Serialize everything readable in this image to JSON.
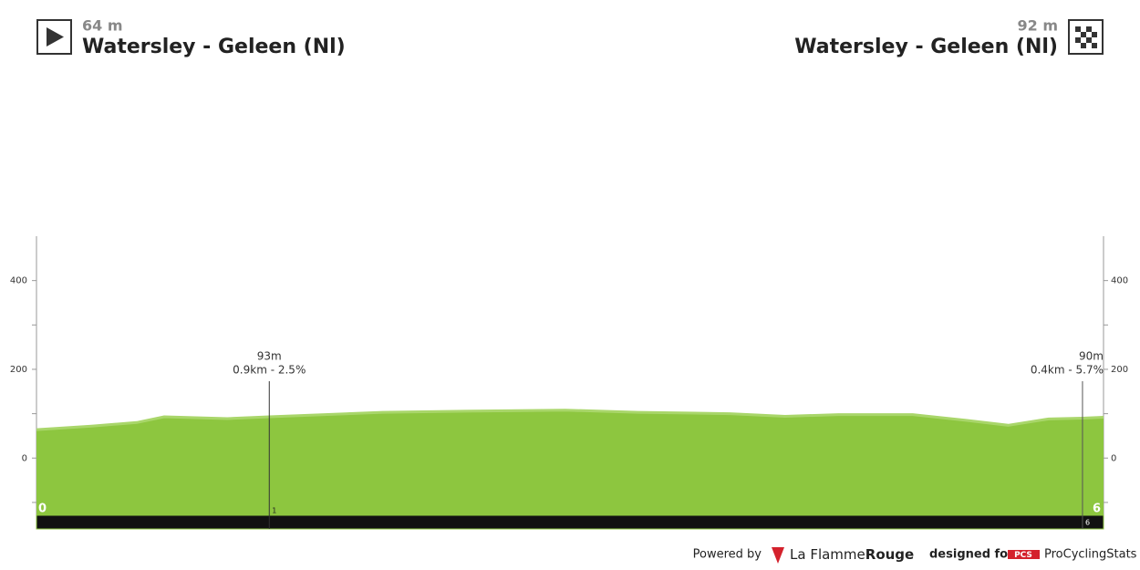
{
  "start": {
    "elevation": "64 m",
    "name": "Watersley - Geleen (Nl)"
  },
  "finish": {
    "elevation": "92 m",
    "name": "Watersley - Geleen (Nl)"
  },
  "chart_data": {
    "type": "area",
    "color": "#8dc63f",
    "edge_color": "#a9d66a",
    "x": [
      0,
      0.34,
      0.62,
      0.79,
      1.18,
      1.44,
      2.14,
      2.71,
      3.27,
      3.72,
      4.29,
      4.63,
      4.96,
      5.42,
      5.75,
      6.01,
      6.26,
      6.47,
      6.6
    ],
    "values": [
      64,
      72,
      80,
      93,
      89,
      93,
      103,
      106,
      108,
      103,
      100,
      94,
      98,
      98,
      85,
      74,
      88,
      90,
      92
    ],
    "xlim": [
      0,
      6.6
    ],
    "xticks": [
      0,
      {
        "value": 6.6,
        "label": "6"
      }
    ],
    "ylim": [
      -130,
      500
    ],
    "yticks": [
      0,
      200,
      400
    ],
    "yminorticks": [
      -100,
      100,
      300
    ],
    "climbs": [
      {
        "x": 1.44,
        "elevation": "93m",
        "detail": "0.9km - 2.5%",
        "km": "1"
      },
      {
        "x": 6.47,
        "elevation": "90m",
        "detail": "0.4km - 5.7%",
        "km": "6"
      }
    ]
  },
  "footer": {
    "powered": "Powered by",
    "brand1": "La Flamme",
    "brand2": "Rouge",
    "designed": "designed for",
    "pcs": "PCS",
    "pcs_name": "ProCyclingStats"
  }
}
